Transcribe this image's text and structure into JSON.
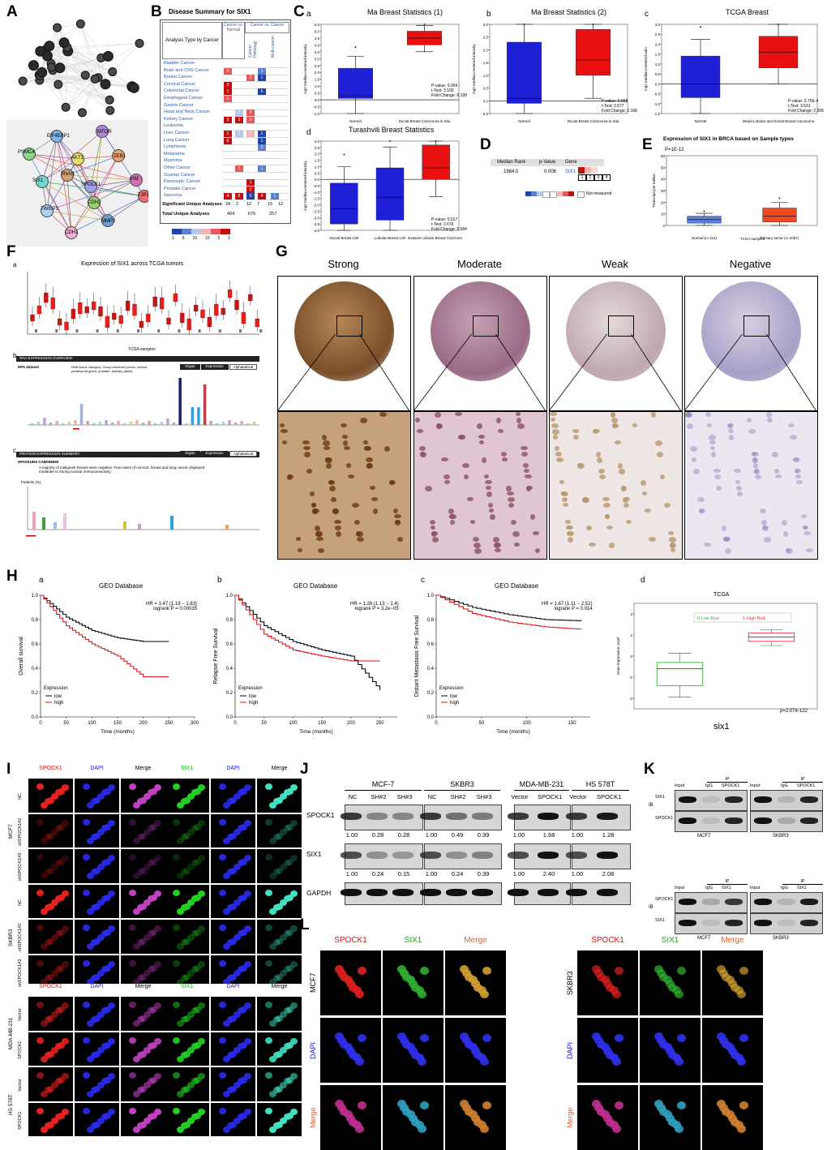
{
  "panels": {
    "A": {
      "letter": "A",
      "nodes": [
        "EIF4EBP1",
        "MTOR",
        "PSMC4",
        "AKT1",
        "ZEB1",
        "VIM",
        "SIX1",
        "SPOCK1",
        "TJP1",
        "CDH2",
        "MMP2",
        "SNAI1",
        "TWIST1",
        "CDH1"
      ]
    },
    "B": {
      "letter": "B",
      "title": "Disease Summary for SIX1",
      "hdr_type": "Analysis Type by Cancer",
      "hdr_c1": "Cancer vs. Normal",
      "hdr_c2": "Cancer vs. Cancer",
      "hdr_c2a": "Cancer Histology",
      "hdr_c2b": "Multi-cancer",
      "cancers": [
        "Bladder Cancer",
        "Brain and CNS Cancer",
        "Breast Cancer",
        "Cervical Cancer",
        "Colorectal Cancer",
        "Esophageal Cancer",
        "Gastric Cancer",
        "Head and Neck Cancer",
        "Kidney Cancer",
        "Leukemia",
        "Liver Cancer",
        "Lung Cancer",
        "Lymphoma",
        "Melanoma",
        "Myeloma",
        "Other Cancer",
        "Ovarian Cancer",
        "Pancreatic Cancer",
        "Prostate Cancer",
        "Sarcoma"
      ],
      "sig_label": "Significant Unique Analyses",
      "sig_vals": [
        "24",
        "2",
        "12",
        "7",
        "15",
        "12"
      ],
      "tot_label": "Total Unique Analyses",
      "tot_vals": [
        "404",
        "676",
        "257"
      ],
      "legend": [
        "1",
        "5",
        "10",
        "10",
        "5",
        "1"
      ]
    },
    "C": {
      "letter": "C",
      "a": {
        "sub": "a",
        "title": "Ma Breast Statistics (1)",
        "cats": [
          "Normal",
          "Ductal Breast Carcinoma in Situ"
        ],
        "stats": [
          "P-value: 0.004",
          "t-Test: 3.100",
          "Fold Change: 6.199"
        ],
        "ylabel": "log2 median-centered intensity",
        "yticks": [
          "5.5",
          "5.0",
          "4.5",
          "4.0",
          "3.5",
          "3.0",
          "2.5",
          "2.0",
          "1.5",
          "1.0",
          "0.5",
          "0.0",
          "-0.5",
          "-1.0"
        ]
      },
      "b": {
        "sub": "b",
        "title": "Ma Breast Statistics (2)",
        "cats": [
          "Normal",
          "Ductal Breast Carcinoma in Situ"
        ],
        "stats": [
          "P-value: 0.008",
          "t-Test: 2.577",
          "Fold Change: 2.168"
        ],
        "ylabel": "log2 median-centered intensity",
        "yticks": [
          "3.0",
          "2.5",
          "2.0",
          "1.5",
          "1.0",
          "0.5",
          "0.0",
          "-0.5"
        ]
      },
      "c": {
        "sub": "c",
        "title": "TCGA Breast",
        "cats": [
          "Normal",
          "Mixed Lobular and Ductal Breast Carcinoma"
        ],
        "stats": [
          "P-value: 3.75E-4",
          "t-Test: 3.531",
          "Fold Change: 2.206"
        ],
        "ylabel": "log2 median-centered ratio",
        "yticks": [
          "3.0",
          "2.5",
          "2.0",
          "1.5",
          "1.0",
          "0.5",
          "0.0",
          "-0.5",
          "-1.0",
          "-1.5"
        ]
      },
      "d": {
        "sub": "d",
        "title": "Turashvili Breast Statistics",
        "cats": [
          "Ductal Breast Cell",
          "Lobular Breast Cell",
          "Invasive Lobular Breast Carcinoma"
        ],
        "stats": [
          "P-value: 0.017",
          "t-Test: 2.676",
          "Fold Change: 5.584"
        ],
        "ylabel": "log2 median-centered intensity",
        "yticks": [
          "3.0",
          "2.5",
          "2.0",
          "1.5",
          "1.0",
          "0.5",
          "0.0",
          "-0.5",
          "-1.0",
          "-1.5",
          "-2.0",
          "-2.5",
          "-3.0",
          "-3.5",
          "-4.0"
        ]
      }
    },
    "D": {
      "letter": "D",
      "hdr": [
        "Median Rank",
        "p-Value",
        "Gene"
      ],
      "row": [
        "1984.0",
        "0.006",
        "SIX1"
      ],
      "cells": [
        "1",
        "2",
        "3",
        "4"
      ],
      "not_measured": "Not measured"
    },
    "E": {
      "letter": "E",
      "title": "Expression of SIX1 in BRCA based on Sample types",
      "pval": "P=1E-12",
      "ylabel": "Transcript per million",
      "xlabel": "TCGA samples",
      "cats": [
        "Normal (n=114)",
        "Primary tumor (n=1097)"
      ],
      "yticks": [
        "60",
        "50",
        "40",
        "30",
        "20",
        "10",
        "0"
      ]
    },
    "F": {
      "letter": "F",
      "title": "Expression of SIX1 across TCGA tumors",
      "xlabel": "TCGA samples",
      "sub_a": "a",
      "sub_b": "b",
      "sub_c": "c",
      "hpa_b": "RNA EXPRESSION OVERVIEW",
      "hpa_b_ds": "HPA dataset",
      "hpa_b_cat": "RNA tissue category: Group enriched (cervix, uterine, parathyroid gland, prostate, salivary gland)",
      "tabs": [
        "Organ",
        "Expression",
        "Alphabetical"
      ],
      "hpa_c": "PROTEIN EXPRESSION SUMMARY",
      "hpa_c_ab": "HPA001893 CAB058690",
      "hpa_c_txt": "A majority of malignant tissues were negative. Few cases of cervical, breast and lung cancer displayed moderate to strong nuclear immunoreactivity.",
      "patients": "Patients (%)"
    },
    "G": {
      "letter": "G",
      "cols": [
        "Strong",
        "Moderate",
        "Weak",
        "Negative"
      ],
      "subs": [
        "a",
        "b",
        "c",
        "d"
      ]
    },
    "H": {
      "letter": "H",
      "a": {
        "sub": "a",
        "title": "GEO Database",
        "hr": "HR = 1.47 (1.19 − 1.83)",
        "lr": "logrank P = 0.00035",
        "ylabel": "Overall survival",
        "xticks": [
          "0",
          "50",
          "100",
          "150",
          "200",
          "250",
          "300"
        ]
      },
      "b": {
        "sub": "b",
        "title": "GEO Database",
        "hr": "HR = 1.26 (1.13 − 1.4)",
        "lr": "logrank P = 3.2e−05",
        "ylabel": "Relapse Free Survival",
        "xticks": [
          "0",
          "50",
          "100",
          "150",
          "200",
          "250"
        ]
      },
      "c": {
        "sub": "c",
        "title": "GEO Database",
        "hr": "HR = 1.67 (1.11 − 2.52)",
        "lr": "logrank P = 0.014",
        "ylabel": "Distant Metastasis Free Survival",
        "xticks": [
          "0",
          "50",
          "100",
          "150"
        ]
      },
      "d": {
        "sub": "d",
        "title": "TCGA",
        "ylabel": "Gene Expression Level",
        "legend_low": "0-Low Risk",
        "legend_high": "1-High Risk",
        "pval": "p=2.07e-122",
        "gene": "six1",
        "yticks": [
          "2",
          "1",
          "0",
          "-1",
          "-2"
        ]
      },
      "xlabel": "Time (months)",
      "yticks": [
        "1.0",
        "0.8",
        "0.6",
        "0.4",
        "0.2",
        "0.0"
      ],
      "legend_title": "Expression",
      "legend_low": "low",
      "legend_high": "high"
    },
    "I": {
      "letter": "I",
      "col_spock": "SPOCK1",
      "col_dapi": "DAPI",
      "col_merge": "Merge",
      "col_six": "SIX1",
      "rows": [
        "NC",
        "shSPOCK1#2",
        "shSPOCK1#3",
        "NC",
        "shSPOCK1#2",
        "shSPOCK1#3",
        "Vector",
        "SPOCK1",
        "Vector",
        "SPOCK1"
      ],
      "lines": [
        "MCF7",
        "SKBR3",
        "MDA-MB-231",
        "HS 578T"
      ]
    },
    "J": {
      "letter": "J",
      "groups": [
        "MCF-7",
        "SKBR3",
        "MDA-MB-231",
        "HS 578T"
      ],
      "lanes": [
        "NC",
        "SH#2",
        "SH#3",
        "NC",
        "SH#2",
        "SH#3",
        "Vector",
        "SPOCK1",
        "Vector",
        "SPOCK1"
      ],
      "rows": [
        "SPOCK1",
        "SIX1",
        "GAPDH"
      ],
      "spock_vals": [
        "1.00",
        "0.28",
        "0.28",
        "1.00",
        "0.49",
        "0.39",
        "1.00",
        "1.68",
        "1.00",
        "1.28"
      ],
      "six_vals": [
        "1.00",
        "0.24",
        "0.15",
        "1.00",
        "0.24",
        "0.39",
        "1.00",
        "2.40",
        "1.00",
        "2.08"
      ]
    },
    "K": {
      "letter": "K",
      "input": "Input",
      "ip": "IP",
      "igg": "IgG",
      "spock": "SPOCK1",
      "six": "SIX1",
      "ib": "IB",
      "mcf7": "MCF7",
      "skbr3": "SKBR3"
    },
    "L": {
      "letter": "L",
      "cols": [
        "SPOCK1",
        "SIX1",
        "Merge"
      ],
      "rows": [
        "MCF7",
        "DAPI",
        "Merge"
      ],
      "rows2": [
        "SKBR3",
        "DAPI",
        "Merge"
      ]
    }
  },
  "chart_data": [
    {
      "type": "box",
      "title": "Ma Breast Statistics (1)",
      "categories": [
        "Normal",
        "Ductal Breast Carcinoma in Situ"
      ],
      "q1": [
        0.1,
        4.0
      ],
      "median": [
        0.3,
        4.5
      ],
      "q3": [
        2.3,
        5.0
      ],
      "ylim": [
        -1.0,
        5.5
      ]
    },
    {
      "type": "box",
      "title": "Ma Breast Statistics (2)",
      "categories": [
        "Normal",
        "Ductal Breast Carcinoma in Situ"
      ],
      "q1": [
        -0.1,
        1.0
      ],
      "median": [
        0.1,
        1.6
      ],
      "q3": [
        2.3,
        2.8
      ],
      "ylim": [
        -0.5,
        3.0
      ]
    },
    {
      "type": "box",
      "title": "TCGA Breast",
      "categories": [
        "Normal",
        "Mixed Lobular and Ductal Breast Carcinoma"
      ],
      "q1": [
        -0.7,
        0.8
      ],
      "median": [
        0.0,
        1.6
      ],
      "q3": [
        1.4,
        2.4
      ],
      "ylim": [
        -1.5,
        3.0
      ]
    },
    {
      "type": "box",
      "title": "Turashvili Breast Statistics",
      "categories": [
        "Ductal Breast Cell",
        "Lobular Breast Cell",
        "Invasive Lobular Breast Carcinoma"
      ],
      "q1": [
        -3.5,
        -3.2,
        0.0
      ],
      "median": [
        -2.3,
        -1.4,
        0.9
      ],
      "q3": [
        -0.3,
        0.9,
        2.7
      ],
      "ylim": [
        -4.0,
        3.0
      ]
    },
    {
      "type": "box",
      "title": "Expression of SIX1 in BRCA based on Sample types",
      "categories": [
        "Normal (n=114)",
        "Primary tumor (n=1097)"
      ],
      "q1": [
        2,
        3
      ],
      "median": [
        5,
        8
      ],
      "q3": [
        8,
        15
      ],
      "ylim": [
        0,
        60
      ]
    },
    {
      "type": "line",
      "title": "GEO Database",
      "series": [
        {
          "name": "low",
          "x": [
            0,
            50,
            100,
            150,
            200,
            250
          ],
          "y": [
            1.0,
            0.82,
            0.71,
            0.65,
            0.62,
            0.62
          ]
        },
        {
          "name": "high",
          "x": [
            0,
            50,
            100,
            150,
            200,
            250
          ],
          "y": [
            1.0,
            0.75,
            0.6,
            0.5,
            0.33,
            0.33
          ]
        }
      ],
      "xlim": [
        0,
        300
      ],
      "ylim": [
        0,
        1
      ]
    },
    {
      "type": "line",
      "title": "GEO Database",
      "series": [
        {
          "name": "low",
          "x": [
            0,
            50,
            100,
            150,
            200,
            250
          ],
          "y": [
            1.0,
            0.75,
            0.62,
            0.55,
            0.5,
            0.22
          ]
        },
        {
          "name": "high",
          "x": [
            0,
            50,
            100,
            150,
            200,
            250
          ],
          "y": [
            1.0,
            0.68,
            0.55,
            0.5,
            0.46,
            0.46
          ]
        }
      ],
      "xlim": [
        0,
        280
      ],
      "ylim": [
        0,
        1
      ]
    },
    {
      "type": "line",
      "title": "GEO Database",
      "series": [
        {
          "name": "low",
          "x": [
            0,
            40,
            80,
            120,
            160
          ],
          "y": [
            1.0,
            0.9,
            0.84,
            0.8,
            0.79
          ]
        },
        {
          "name": "high",
          "x": [
            0,
            40,
            80,
            120,
            160
          ],
          "y": [
            1.0,
            0.85,
            0.78,
            0.74,
            0.72
          ]
        }
      ],
      "xlim": [
        0,
        170
      ],
      "ylim": [
        0,
        1
      ]
    },
    {
      "type": "box",
      "title": "TCGA",
      "categories": [
        "0-Low Risk",
        "1-High Risk"
      ],
      "q1": [
        -1.4,
        0.7
      ],
      "median": [
        -0.6,
        0.9
      ],
      "q3": [
        -0.3,
        1.1
      ],
      "ylim": [
        -2.5,
        2.5
      ]
    }
  ]
}
